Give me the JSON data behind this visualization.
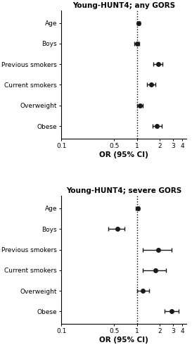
{
  "panels": [
    {
      "title": "Young-HUNT4; any GORS",
      "labels": [
        "Age",
        "Boys",
        "Previous smokers",
        "Current smokers",
        "Overweight",
        "Obese"
      ],
      "or": [
        1.05,
        1.0,
        1.9,
        1.55,
        1.1,
        1.85
      ],
      "ci_low": [
        1.01,
        0.92,
        1.65,
        1.35,
        1.0,
        1.6
      ],
      "ci_high": [
        1.09,
        1.08,
        2.2,
        1.75,
        1.2,
        2.15
      ]
    },
    {
      "title": "Young-HUNT4; severe GORS",
      "labels": [
        "Age",
        "Boys",
        "Previous smokers",
        "Current smokers",
        "Overweight",
        "Obese"
      ],
      "or": [
        1.02,
        0.55,
        1.9,
        1.75,
        1.2,
        2.85
      ],
      "ci_low": [
        0.96,
        0.42,
        1.2,
        1.2,
        1.0,
        2.3
      ],
      "ci_high": [
        1.08,
        0.68,
        2.9,
        2.4,
        1.45,
        3.55
      ]
    }
  ],
  "xlabel": "OR (95% CI)",
  "xmin": 0.1,
  "xmax": 4.5,
  "xticks": [
    0.1,
    0.5,
    1,
    2,
    3,
    4
  ],
  "xtick_labels": [
    "0.1",
    "0.5",
    "1",
    "2",
    "3",
    "4"
  ],
  "vline": 1.0,
  "dot_color": "#1a1a1a",
  "dot_size": 4,
  "line_color": "#1a1a1a",
  "line_width": 1.0,
  "title_fontsize": 7.5,
  "label_fontsize": 6.5,
  "tick_fontsize": 6.5,
  "xlabel_fontsize": 7.5
}
